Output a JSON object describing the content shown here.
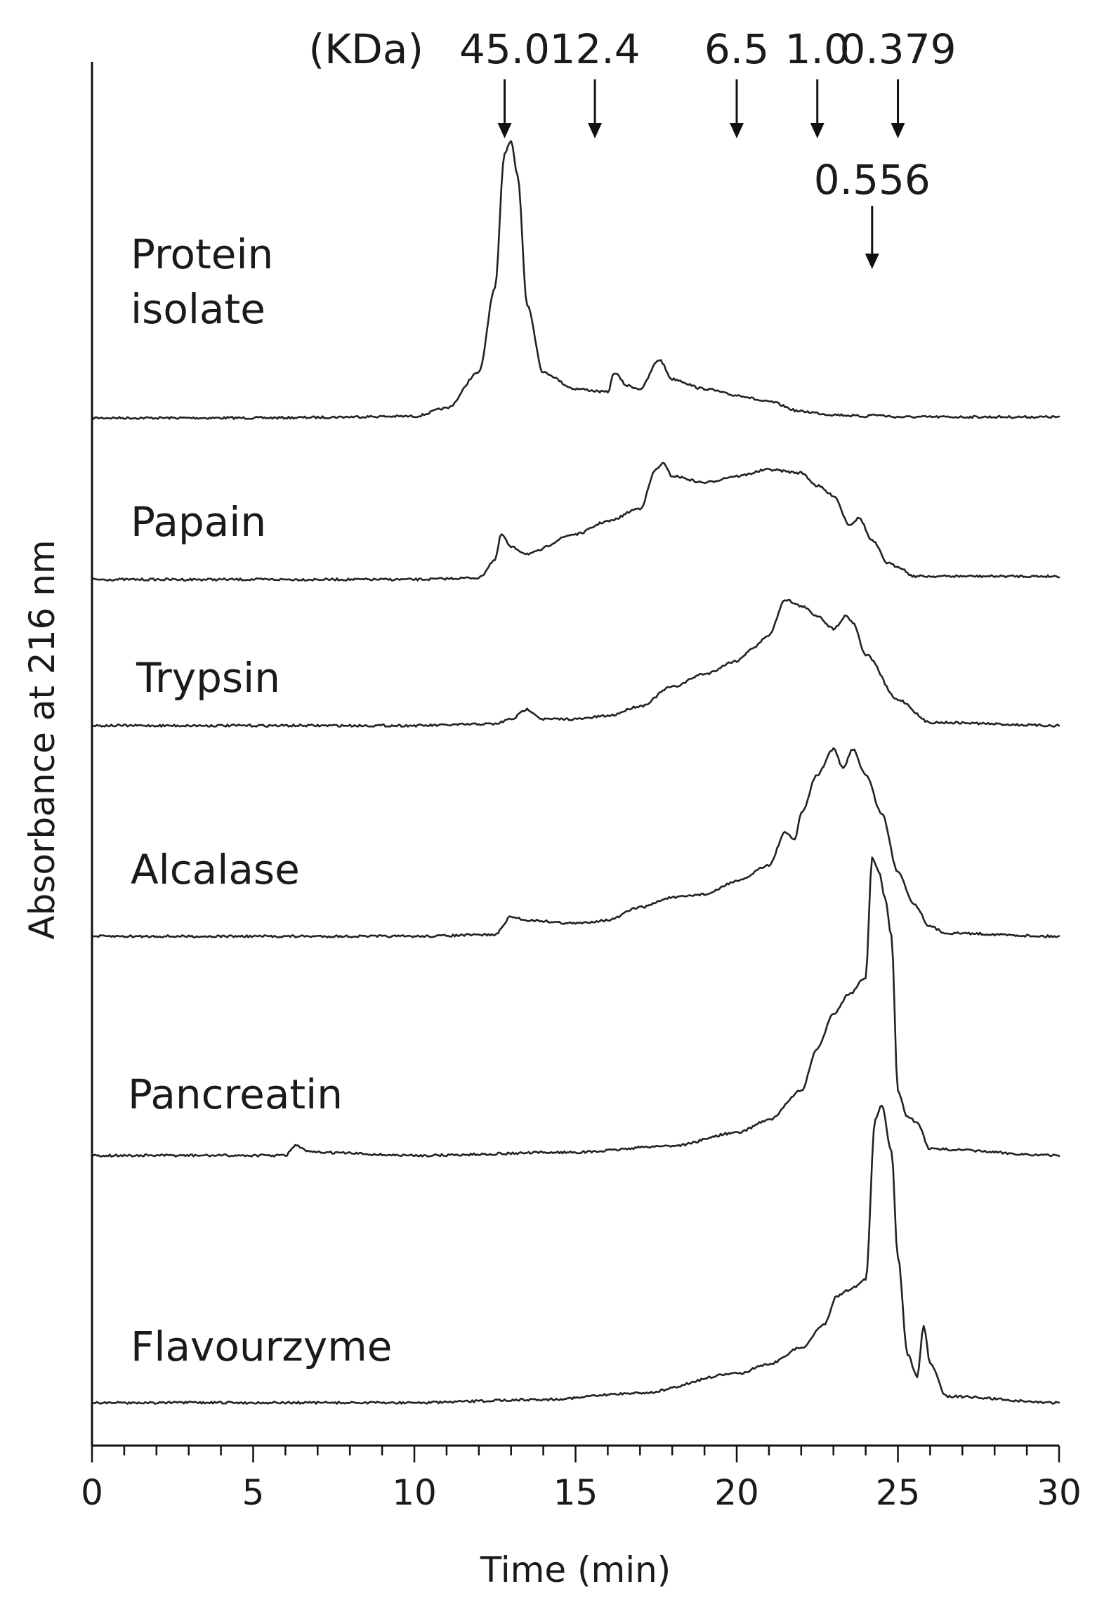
{
  "chart_data": {
    "type": "line",
    "title": "",
    "xlabel": "Time (min)",
    "ylabel": "Absorbance at 216 nm",
    "xlim": [
      0,
      30
    ],
    "x_ticks": [
      "0",
      "5",
      "10",
      "15",
      "20",
      "25",
      "30"
    ],
    "y_ticks": "none",
    "grid": false,
    "legend": "none (inline labels beside each trace)",
    "marker_unit": "(KDa)",
    "markers": [
      {
        "label": "45.0",
        "x": 12.8
      },
      {
        "label": "12.4",
        "x": 15.6
      },
      {
        "label": "6.5",
        "x": 20.0
      },
      {
        "label": "1.0",
        "x": 22.5
      },
      {
        "label": "0.379",
        "x": 25.0
      },
      {
        "label": "0.556",
        "x": 24.2
      }
    ],
    "series": [
      {
        "name": "Protein isolate",
        "baseline": 0,
        "points": [
          [
            0,
            0
          ],
          [
            5,
            0
          ],
          [
            10,
            0.005
          ],
          [
            11,
            0.03
          ],
          [
            12,
            0.14
          ],
          [
            12.5,
            0.4
          ],
          [
            12.8,
            0.82
          ],
          [
            13.0,
            0.86
          ],
          [
            13.2,
            0.75
          ],
          [
            13.5,
            0.35
          ],
          [
            14,
            0.14
          ],
          [
            15,
            0.09
          ],
          [
            16,
            0.08
          ],
          [
            16.2,
            0.14
          ],
          [
            16.6,
            0.1
          ],
          [
            17,
            0.09
          ],
          [
            17.6,
            0.18
          ],
          [
            18,
            0.12
          ],
          [
            19,
            0.09
          ],
          [
            20,
            0.07
          ],
          [
            21,
            0.05
          ],
          [
            22,
            0.02
          ],
          [
            23,
            0.01
          ],
          [
            24,
            0.005
          ],
          [
            24.2,
            0.01
          ],
          [
            25,
            0.003
          ],
          [
            30,
            0.003
          ]
        ]
      },
      {
        "name": "Papain",
        "baseline": 0,
        "points": [
          [
            0,
            0
          ],
          [
            5,
            0
          ],
          [
            10,
            0
          ],
          [
            12,
            0.005
          ],
          [
            12.5,
            0.06
          ],
          [
            12.7,
            0.14
          ],
          [
            13,
            0.1
          ],
          [
            13.5,
            0.08
          ],
          [
            15,
            0.14
          ],
          [
            16,
            0.18
          ],
          [
            17,
            0.22
          ],
          [
            17.5,
            0.34
          ],
          [
            17.7,
            0.36
          ],
          [
            18,
            0.32
          ],
          [
            19,
            0.3
          ],
          [
            20,
            0.32
          ],
          [
            21,
            0.34
          ],
          [
            22,
            0.33
          ],
          [
            22.5,
            0.29
          ],
          [
            23,
            0.26
          ],
          [
            23.5,
            0.17
          ],
          [
            23.8,
            0.19
          ],
          [
            24.2,
            0.12
          ],
          [
            24.7,
            0.05
          ],
          [
            25,
            0.04
          ],
          [
            25.5,
            0.01
          ],
          [
            30,
            0.01
          ]
        ]
      },
      {
        "name": "Trypsin",
        "baseline": 0,
        "points": [
          [
            0,
            0
          ],
          [
            10,
            0
          ],
          [
            12.5,
            0.005
          ],
          [
            13,
            0.02
          ],
          [
            13.5,
            0.05
          ],
          [
            14,
            0.02
          ],
          [
            15,
            0.02
          ],
          [
            16,
            0.03
          ],
          [
            17,
            0.06
          ],
          [
            18,
            0.12
          ],
          [
            19,
            0.16
          ],
          [
            20,
            0.2
          ],
          [
            20.5,
            0.24
          ],
          [
            21,
            0.28
          ],
          [
            21.5,
            0.39
          ],
          [
            22,
            0.37
          ],
          [
            22.5,
            0.34
          ],
          [
            23,
            0.3
          ],
          [
            23.4,
            0.34
          ],
          [
            23.6,
            0.32
          ],
          [
            24,
            0.22
          ],
          [
            25,
            0.08
          ],
          [
            26,
            0.01
          ],
          [
            30,
            0
          ]
        ]
      },
      {
        "name": "Alcalase",
        "baseline": 0,
        "points": [
          [
            0,
            0
          ],
          [
            10,
            0
          ],
          [
            12.5,
            0.005
          ],
          [
            13,
            0.06
          ],
          [
            13.5,
            0.05
          ],
          [
            15,
            0.04
          ],
          [
            16,
            0.05
          ],
          [
            17,
            0.09
          ],
          [
            18,
            0.12
          ],
          [
            19,
            0.13
          ],
          [
            20,
            0.17
          ],
          [
            21,
            0.22
          ],
          [
            21.5,
            0.32
          ],
          [
            21.8,
            0.3
          ],
          [
            22,
            0.38
          ],
          [
            22.5,
            0.5
          ],
          [
            23,
            0.58
          ],
          [
            23.3,
            0.52
          ],
          [
            23.6,
            0.58
          ],
          [
            24,
            0.5
          ],
          [
            24.5,
            0.38
          ],
          [
            25,
            0.2
          ],
          [
            25.5,
            0.1
          ],
          [
            26,
            0.03
          ],
          [
            26.5,
            0.01
          ],
          [
            30,
            0
          ]
        ]
      },
      {
        "name": "Pancreatin",
        "baseline": 0,
        "points": [
          [
            0,
            0
          ],
          [
            6,
            0
          ],
          [
            6.3,
            0.03
          ],
          [
            6.8,
            0.01
          ],
          [
            10,
            0
          ],
          [
            15,
            0.01
          ],
          [
            18,
            0.03
          ],
          [
            20,
            0.07
          ],
          [
            21,
            0.11
          ],
          [
            22,
            0.2
          ],
          [
            22.5,
            0.33
          ],
          [
            23,
            0.44
          ],
          [
            23.5,
            0.5
          ],
          [
            24,
            0.55
          ],
          [
            24.2,
            0.92
          ],
          [
            24.4,
            0.88
          ],
          [
            24.6,
            0.8
          ],
          [
            24.8,
            0.68
          ],
          [
            25,
            0.2
          ],
          [
            25.3,
            0.12
          ],
          [
            25.6,
            0.1
          ],
          [
            26,
            0.02
          ],
          [
            30,
            0
          ]
        ]
      },
      {
        "name": "Flavourzyme",
        "baseline": 0,
        "points": [
          [
            0,
            0
          ],
          [
            10,
            0
          ],
          [
            14,
            0.01
          ],
          [
            17,
            0.03
          ],
          [
            20,
            0.09
          ],
          [
            21,
            0.12
          ],
          [
            22,
            0.17
          ],
          [
            22.7,
            0.24
          ],
          [
            23.1,
            0.33
          ],
          [
            23.5,
            0.35
          ],
          [
            24,
            0.38
          ],
          [
            24.3,
            0.88
          ],
          [
            24.5,
            0.92
          ],
          [
            24.8,
            0.78
          ],
          [
            25,
            0.45
          ],
          [
            25.3,
            0.15
          ],
          [
            25.6,
            0.08
          ],
          [
            25.8,
            0.24
          ],
          [
            26,
            0.12
          ],
          [
            26.5,
            0.02
          ],
          [
            30,
            0
          ]
        ]
      }
    ]
  },
  "series_labels": [
    {
      "lines": [
        "Protein",
        "isolate"
      ]
    },
    {
      "lines": [
        "Papain"
      ]
    },
    {
      "lines": [
        "Trypsin"
      ]
    },
    {
      "lines": [
        "Alcalase"
      ]
    },
    {
      "lines": [
        "Pancreatin"
      ]
    },
    {
      "lines": [
        "Flavourzyme"
      ]
    }
  ]
}
